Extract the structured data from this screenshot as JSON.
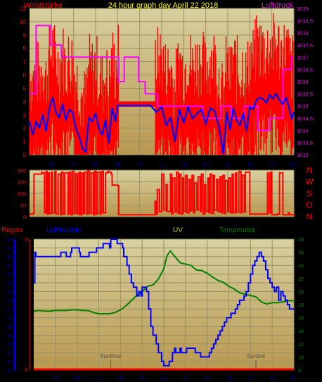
{
  "colors": {
    "wind_speed": "#ff0000",
    "wind_avg": "#0000ff",
    "pressure": "#ff00ff",
    "direction": "#ff0000",
    "humidity": "#0000ff",
    "temperature": "#008000",
    "rain": "#ff0000",
    "uv_title": "#cccc00",
    "title": "#ffff00",
    "bg_top": "#d8d0a0",
    "bg_bottom": "#b89850",
    "grid": "#9a9060",
    "axis_text": "#000080",
    "marker": "#555555"
  },
  "chart_data": [
    {
      "type": "line",
      "title": "24 hour graph day   April 22 2018",
      "ylabel": "Windstärke",
      "y2label": "Luftdruck",
      "x_ticks": [
        "02",
        "04",
        "06",
        "08",
        "10",
        "12",
        "14",
        "16",
        "18",
        "20",
        "22",
        "00"
      ],
      "x_range": [
        0,
        24
      ],
      "ylim": [
        0,
        11
      ],
      "y_ticks": [
        "0",
        "1",
        "2",
        "3",
        "4",
        "5",
        "6",
        "7",
        "8",
        "9",
        "10",
        "11"
      ],
      "y2lim": [
        1013,
        1019
      ],
      "y2_ticks": [
        "1013",
        "1013,5",
        "1014",
        "1014,5",
        "1015",
        "1015,5",
        "1016",
        "1016,5",
        "1017",
        "1017,5",
        "1018",
        "1018,5",
        "1019"
      ],
      "grid": true,
      "series": [
        {
          "axis": "y2",
          "color_key": "pressure",
          "x": [
            0,
            0.6,
            0.6,
            1.9,
            1.9,
            2.9,
            2.9,
            8.1,
            8.1,
            8.6,
            8.6,
            9.9,
            9.9,
            10.5,
            10.5,
            11.6,
            11.6,
            12.4,
            12.4,
            15.7,
            15.7,
            17.4,
            17.4,
            18.3,
            18.3,
            19.5,
            19.5,
            20.7,
            20.7,
            21.8,
            21.8,
            23.0,
            23.0,
            23.8,
            23.8,
            24.0
          ],
          "y": [
            1015.5,
            1015.5,
            1018.3,
            1018.3,
            1017.5,
            1017.5,
            1017,
            1017,
            1016,
            1016,
            1017,
            1017,
            1016,
            1016,
            1015.5,
            1015.5,
            1015,
            1015,
            1015,
            1015,
            1014.5,
            1014.5,
            1015,
            1015,
            1014.5,
            1014.5,
            1015,
            1015,
            1014,
            1014,
            1014.5,
            1014.5,
            1016.5,
            1016.5,
            1017,
            1017
          ]
        },
        {
          "axis": "y",
          "color_key": "wind_avg",
          "x": [
            0,
            0.3,
            0.6,
            0.9,
            1.2,
            1.5,
            1.8,
            2.1,
            2.4,
            2.7,
            3.0,
            3.3,
            3.6,
            3.9,
            4.2,
            4.5,
            4.8,
            5.1,
            5.4,
            5.7,
            6.0,
            6.3,
            6.6,
            6.9,
            7.2,
            7.5,
            7.8,
            8.0,
            8.5,
            9.0,
            10.0,
            11.0,
            11.5,
            12.0,
            12.4,
            12.8,
            13.2,
            13.6,
            14.0,
            14.4,
            14.8,
            15.2,
            15.6,
            16.0,
            16.4,
            16.8,
            17.2,
            17.6,
            17.9,
            18.2,
            18.5,
            18.8,
            19.1,
            19.4,
            19.7,
            20.0,
            20.3,
            20.6,
            20.9,
            21.2,
            21.5,
            21.8,
            22.1,
            22.4,
            22.7,
            23.0,
            23.3,
            23.6,
            23.8,
            24.0
          ],
          "y": [
            2.5,
            1.5,
            2.5,
            2,
            3,
            1.8,
            3.5,
            4.3,
            3.2,
            2.8,
            3.8,
            2.6,
            3.4,
            3.2,
            2,
            1.4,
            0.5,
            0.2,
            2.8,
            2.5,
            3.1,
            2,
            1.5,
            2.6,
            0.9,
            3.5,
            2.5,
            3.7,
            3.7,
            3.7,
            3.7,
            3.7,
            3.2,
            3.6,
            2.2,
            2.8,
            1,
            3.4,
            2.4,
            3.6,
            2.7,
            3.1,
            3.4,
            2.3,
            3.5,
            3.3,
            2.1,
            0.1,
            3.2,
            1.9,
            3.5,
            2.6,
            2.2,
            3.1,
            1.8,
            3.6,
            3.4,
            4.1,
            4.3,
            4.2,
            3.9,
            4.5,
            4.2,
            4.6,
            4.1,
            3.8,
            4.3,
            3.4,
            2.7,
            3.2
          ]
        }
      ]
    },
    {
      "type": "line",
      "title": "",
      "y_ticks": [
        "0",
        "90",
        "180",
        "270",
        "360"
      ],
      "ylim": [
        0,
        360
      ],
      "right_labels": [
        "N",
        "W",
        "S",
        "O",
        "N"
      ],
      "grid": true,
      "series": [
        {
          "color_key": "direction",
          "x": [
            0,
            0.3,
            0.4,
            1.1,
            1.2,
            1.35,
            1.5,
            1.6,
            1.7,
            1.8,
            2.0,
            2.1,
            2.3,
            2.4,
            2.6,
            2.8,
            2.9,
            3.05,
            3.2,
            3.5,
            3.6,
            3.75,
            3.9,
            4.05,
            4.2,
            4.35,
            4.5,
            4.6,
            4.75,
            4.9,
            5.0,
            5.2,
            5.3,
            5.45,
            5.6,
            5.8,
            5.9,
            6.05,
            6.2,
            6.4,
            6.55,
            6.7,
            6.9,
            7.1,
            7.2,
            7.4,
            7.5,
            8.0,
            8.1,
            11.3,
            11.4,
            11.5,
            11.6,
            11.8,
            12.0,
            12.2,
            12.4,
            12.5,
            12.8,
            12.9,
            13.0,
            13.2,
            13.35,
            13.5,
            13.6,
            13.75,
            13.9,
            14.0,
            14.15,
            14.3,
            14.5,
            14.6,
            14.75,
            14.9,
            15.0,
            15.2,
            15.3,
            15.5,
            15.6,
            15.75,
            15.9,
            16.0,
            16.2,
            16.3,
            16.4,
            16.55,
            16.7,
            16.8,
            17.0,
            17.1,
            17.3,
            17.4,
            17.55,
            17.7,
            17.8,
            18.0,
            18.1,
            18.25,
            18.4,
            18.5,
            18.7,
            18.8,
            19.0,
            19.2,
            19.3,
            19.5,
            19.6,
            20.0,
            21.5,
            21.6,
            21.75,
            21.9,
            22.0,
            22.5,
            22.7,
            23.0,
            23.5,
            23.6,
            24.0
          ],
          "y": [
            20,
            25,
            330,
            345,
            340,
            30,
            350,
            20,
            340,
            25,
            345,
            30,
            350,
            20,
            330,
            15,
            345,
            20,
            340,
            20,
            345,
            15,
            350,
            25,
            335,
            20,
            345,
            15,
            340,
            25,
            345,
            20,
            355,
            25,
            340,
            15,
            350,
            20,
            345,
            20,
            350,
            30,
            340,
            350,
            345,
            330,
            245,
            240,
            15,
            15,
            120,
            20,
            210,
            40,
            330,
            50,
            250,
            40,
            330,
            20,
            300,
            35,
            345,
            25,
            330,
            20,
            300,
            40,
            320,
            30,
            290,
            45,
            320,
            30,
            260,
            50,
            310,
            40,
            330,
            20,
            250,
            40,
            300,
            30,
            330,
            25,
            320,
            50,
            290,
            40,
            310,
            30,
            320,
            25,
            280,
            40,
            300,
            30,
            330,
            30,
            340,
            35,
            350,
            30,
            320,
            35,
            345,
            20,
            20,
            340,
            30,
            345,
            15,
            20,
            340,
            15,
            30,
            15,
            20
          ]
        }
      ]
    },
    {
      "type": "line",
      "title": "",
      "legend": [
        "Regen",
        "Luftfeuchte",
        "UV",
        "Temperatur"
      ],
      "x_ticks": [
        "02",
        "04",
        "06",
        "08",
        "10",
        "12",
        "14",
        "16",
        "18",
        "20",
        "22",
        "00"
      ],
      "x_range": [
        0,
        24
      ],
      "humidity_lim": [
        38,
        68
      ],
      "humidity_ticks": [
        "38",
        "40",
        "42",
        "44",
        "46",
        "48",
        "50",
        "52",
        "54",
        "56",
        "58",
        "60",
        "62",
        "64",
        "66",
        "68"
      ],
      "rain_ticks": [
        "0",
        "5"
      ],
      "temperature_lim": [
        8,
        28
      ],
      "temperature_ticks": [
        "8",
        "10",
        "12",
        "14",
        "16",
        "18",
        "20",
        "22",
        "24",
        "26",
        "28"
      ],
      "annotations": [
        {
          "label": "SunRise",
          "x": 7.1
        },
        {
          "label": "SunSet",
          "x": 20.5
        }
      ],
      "grid": true,
      "series": [
        {
          "name": "Luftfeuchte",
          "axis": "humidity",
          "color_key": "humidity",
          "x": [
            0,
            0.1,
            0.2,
            0.3,
            1.2,
            1.3,
            2.2,
            2.3,
            2.5,
            2.6,
            3.0,
            3.1,
            3.4,
            3.5,
            4.2,
            4.3,
            5.0,
            5.1,
            5.7,
            5.8,
            6.3,
            6.4,
            6.7,
            6.8,
            7.0,
            7.1,
            7.6,
            7.7,
            8.2,
            8.3,
            8.6,
            8.8,
            9.0,
            9.2,
            9.5,
            9.7,
            9.9,
            10.0,
            10.1,
            10.4,
            10.6,
            10.8,
            11.0,
            11.3,
            11.5,
            11.8,
            12.0,
            12.3,
            12.5,
            12.8,
            13.0,
            13.1,
            13.5,
            13.6,
            14.0,
            14.1,
            14.8,
            14.9,
            15.3,
            15.4,
            15.8,
            16.0,
            16.2,
            16.4,
            16.6,
            16.8,
            17.0,
            17.2,
            17.4,
            17.6,
            17.8,
            18.0,
            18.2,
            18.4,
            18.6,
            18.8,
            19.0,
            19.2,
            19.4,
            19.6,
            19.8,
            20.0,
            20.2,
            20.4,
            20.6,
            20.8,
            21.0,
            21.2,
            21.4,
            21.6,
            21.8,
            22.0,
            22.2,
            22.4,
            22.6,
            22.8,
            23.0,
            23.2,
            23.4,
            23.6,
            23.8,
            24.0
          ],
          "y": [
            58,
            65,
            64,
            64,
            64,
            64,
            64,
            64,
            65,
            65,
            64,
            64,
            65,
            66,
            65,
            64,
            64,
            65,
            65,
            66,
            66,
            67,
            67,
            67,
            66,
            68,
            68,
            67,
            66,
            64,
            62,
            60,
            58,
            57,
            55,
            56,
            55,
            57,
            57,
            56,
            52,
            48,
            46,
            44,
            42,
            40,
            39,
            39,
            40,
            42,
            43,
            42,
            43,
            42,
            42,
            43,
            43,
            42,
            42,
            41,
            41,
            41,
            42,
            43,
            44,
            45,
            46,
            47,
            48,
            49,
            50,
            50,
            51,
            51,
            52,
            53,
            54,
            54,
            55,
            56,
            58,
            60,
            62,
            63,
            64,
            65,
            64,
            63,
            61,
            59,
            58,
            57,
            56,
            57,
            54,
            56,
            55,
            54,
            53,
            52,
            52,
            52
          ]
        },
        {
          "name": "Temperatur",
          "axis": "temperature",
          "color_key": "temperature",
          "x": [
            0,
            0.5,
            1,
            1.5,
            2,
            2.5,
            3,
            3.5,
            4,
            4.5,
            5,
            5.5,
            6,
            6.5,
            7,
            7.5,
            8,
            8.5,
            9,
            9.5,
            10,
            10.5,
            11,
            11.5,
            12,
            12.3,
            12.6,
            13,
            13.5,
            14,
            14.5,
            15,
            15.5,
            16,
            16.5,
            17,
            17.5,
            18,
            18.5,
            19,
            19.5,
            20,
            20.5,
            21,
            21.5,
            22,
            22.5,
            23,
            23.5,
            24
          ],
          "y": [
            17,
            17.1,
            17,
            17,
            17.1,
            17.1,
            17.1,
            17.2,
            17.2,
            17.1,
            17.1,
            16.8,
            16.6,
            16.6,
            16.6,
            16.8,
            17.2,
            17.8,
            18.6,
            19.4,
            20,
            20.8,
            21,
            21.9,
            23.5,
            25.5,
            26.2,
            25.4,
            24.4,
            24.2,
            24,
            23.3,
            23.2,
            22.8,
            22.2,
            21.7,
            21.4,
            20.8,
            20.4,
            19.8,
            19.6,
            19.4,
            19.2,
            18.4,
            18.1,
            18.3,
            18.3,
            18.4,
            18.6,
            18.6
          ]
        },
        {
          "name": "Regen",
          "axis": "rain",
          "color_key": "rain",
          "x": [
            0,
            24
          ],
          "y": [
            0,
            0
          ]
        }
      ]
    }
  ]
}
